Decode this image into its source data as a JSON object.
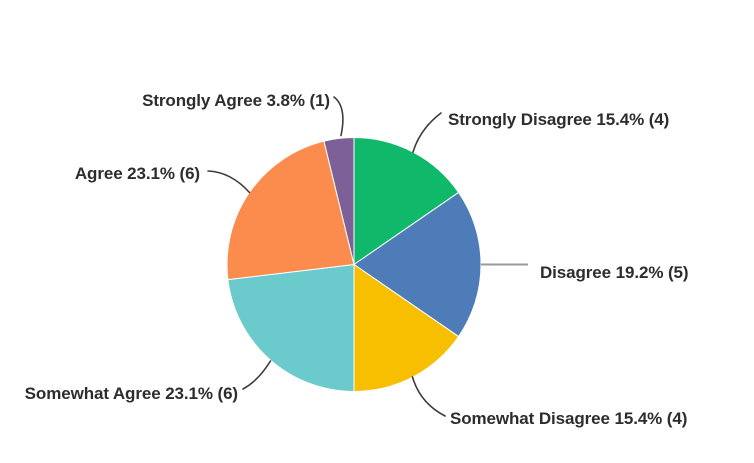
{
  "chart_data": {
    "type": "pie",
    "start_angle_deg": 0,
    "direction": "clockwise",
    "legend_position": "callout-labels",
    "slices": [
      {
        "label": "Strongly Disagree",
        "percent": 15.4,
        "count": 4,
        "color": "#10B869",
        "display": "Strongly Disagree 15.4% (4)"
      },
      {
        "label": "Disagree",
        "percent": 19.2,
        "count": 5,
        "color": "#4E7CB8",
        "display": "Disagree 19.2% (5)"
      },
      {
        "label": "Somewhat Disagree",
        "percent": 15.4,
        "count": 4,
        "color": "#F8BE00",
        "display": "Somewhat Disagree 15.4% (4)"
      },
      {
        "label": "Somewhat Agree",
        "percent": 23.1,
        "count": 6,
        "color": "#6BCACC",
        "display": "Somewhat Agree 23.1% (6)"
      },
      {
        "label": "Agree",
        "percent": 23.1,
        "count": 6,
        "color": "#FC8C4D",
        "display": "Agree 23.1% (6)"
      },
      {
        "label": "Strongly Agree",
        "percent": 3.8,
        "count": 1,
        "color": "#7C6097",
        "display": "Strongly Agree 3.8% (1)"
      }
    ]
  }
}
